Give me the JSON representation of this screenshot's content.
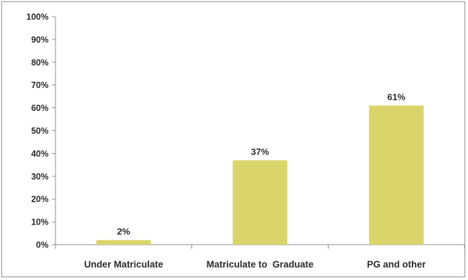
{
  "chart_data": {
    "type": "bar",
    "categories": [
      "Under Matriculate",
      "Matriculate to  Graduate",
      "PG and other"
    ],
    "values": [
      2,
      37,
      61
    ],
    "data_labels": [
      "2%",
      "37%",
      "61%"
    ],
    "title": "",
    "xlabel": "",
    "ylabel": "",
    "ylim": [
      0,
      100
    ],
    "yticks": [
      "0%",
      "10%",
      "20%",
      "30%",
      "40%",
      "50%",
      "60%",
      "70%",
      "80%",
      "90%",
      "100%"
    ],
    "grid": false,
    "legend": "none",
    "bar_color": "#d9d56a",
    "axis_color": "#8c8c8c"
  }
}
